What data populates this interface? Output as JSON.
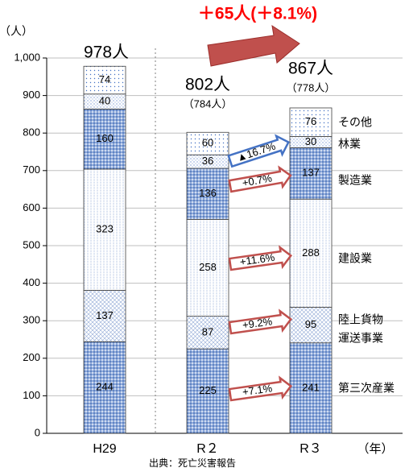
{
  "chart_data": {
    "type": "bar",
    "stacked": true,
    "ylabel": "（人）",
    "xunit": "（年）",
    "source": "出典：死亡災害報告",
    "ylim": [
      0,
      1000
    ],
    "yticks": [
      "0",
      "100",
      "200",
      "300",
      "400",
      "500",
      "600",
      "700",
      "800",
      "900",
      "1,000"
    ],
    "categories": [
      "H29",
      "R２",
      "R３"
    ],
    "totals": [
      "978人",
      "802人",
      "867人"
    ],
    "totals_sub": [
      "",
      "（784人）",
      "（778人）"
    ],
    "series": [
      {
        "name": "第三次産業",
        "values": [
          244,
          225,
          241
        ],
        "change": "+7.1%"
      },
      {
        "name": "陸上貨物運送事業",
        "values": [
          137,
          87,
          95
        ],
        "change": "+9.2%"
      },
      {
        "name": "建設業",
        "values": [
          323,
          258,
          288
        ],
        "change": "+11.6%"
      },
      {
        "name": "製造業",
        "values": [
          160,
          136,
          137
        ],
        "change": "+0.7%"
      },
      {
        "name": "林業",
        "values": [
          40,
          36,
          30
        ],
        "change": "▲16.7%"
      },
      {
        "name": "その他",
        "values": [
          74,
          60,
          76
        ],
        "change": ""
      }
    ],
    "overall_change": "＋65人(＋8.1%)",
    "colors": {
      "dark_fill": "#8eaadb",
      "light_fill": "#ffffff",
      "dot": "#4472c4",
      "arrow_red": "#c0504d",
      "arrow_blue": "#4472c4",
      "headline": "#ff0000"
    }
  }
}
